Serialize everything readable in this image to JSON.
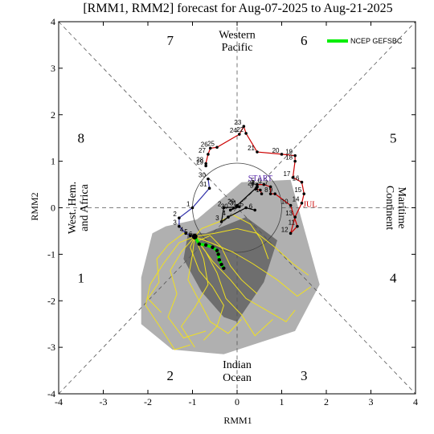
{
  "chart_data": {
    "type": "scatter",
    "title": "[RMM1, RMM2] forecast for Aug-07-2025 to Aug-21-2025",
    "xlabel": "RMM1",
    "ylabel": "RMM2",
    "xlim": [
      -4,
      4
    ],
    "ylim": [
      -4,
      4
    ],
    "xticks": [
      "-4",
      "-3",
      "-2",
      "-1",
      "0",
      "1",
      "2",
      "3",
      "4"
    ],
    "yticks": [
      "-4",
      "-3",
      "-2",
      "-1",
      "0",
      "1",
      "2",
      "3",
      "4"
    ],
    "grid": false,
    "legend_position": "top-right",
    "octants": [
      {
        "label": "1",
        "x": -3.5,
        "y": -1.5
      },
      {
        "label": "2",
        "x": -1.5,
        "y": -3.6
      },
      {
        "label": "3",
        "x": 1.5,
        "y": -3.6
      },
      {
        "label": "4",
        "x": 3.5,
        "y": -1.5
      },
      {
        "label": "5",
        "x": 3.5,
        "y": 1.5
      },
      {
        "label": "6",
        "x": 1.5,
        "y": 3.6
      },
      {
        "label": "7",
        "x": -1.5,
        "y": 3.6
      },
      {
        "label": "8",
        "x": -3.5,
        "y": 1.5
      }
    ],
    "regions": [
      {
        "lines": [
          "Western",
          "Pacific"
        ]
      },
      {
        "lines": [
          "Indian",
          "Ocean"
        ]
      },
      {
        "lines": [
          "West. Hem.",
          "and Africa"
        ]
      },
      {
        "lines": [
          "Maritime",
          "Continent"
        ]
      }
    ],
    "series": [
      {
        "name": "JUL",
        "color": "#cc0000",
        "points": [
          {
            "d": "1",
            "x": 0.55,
            "y": 0.3
          },
          {
            "d": "2",
            "x": 0.52,
            "y": 0.38
          },
          {
            "d": "3",
            "x": 0.42,
            "y": 0.4
          },
          {
            "d": "4",
            "x": 0.45,
            "y": 0.45
          },
          {
            "d": "5",
            "x": 0.45,
            "y": 0.5
          },
          {
            "d": "6",
            "x": 0.6,
            "y": 0.5
          },
          {
            "d": "7",
            "x": 0.75,
            "y": 0.45
          },
          {
            "d": "8",
            "x": 0.75,
            "y": 0.3
          },
          {
            "d": "9",
            "x": 0.85,
            "y": 0.3
          },
          {
            "d": "10",
            "x": 1.2,
            "y": 0.05
          },
          {
            "d": "11",
            "x": 1.35,
            "y": -0.4
          },
          {
            "d": "12",
            "x": 1.2,
            "y": -0.55
          },
          {
            "d": "13",
            "x": 1.3,
            "y": -0.2
          },
          {
            "d": "14",
            "x": 1.45,
            "y": 0.1
          },
          {
            "d": "15",
            "x": 1.5,
            "y": 0.3
          },
          {
            "d": "16",
            "x": 1.45,
            "y": 0.55
          },
          {
            "d": "17",
            "x": 1.25,
            "y": 0.65
          },
          {
            "d": "18",
            "x": 1.3,
            "y": 1.0
          },
          {
            "d": "19",
            "x": 1.3,
            "y": 1.12
          },
          {
            "d": "20",
            "x": 1.0,
            "y": 1.15
          },
          {
            "d": "21",
            "x": 0.45,
            "y": 1.2
          },
          {
            "d": "22",
            "x": 0.2,
            "y": 1.6
          },
          {
            "d": "23",
            "x": 0.15,
            "y": 1.75
          },
          {
            "d": "24",
            "x": 0.05,
            "y": 1.58
          },
          {
            "d": "25",
            "x": -0.45,
            "y": 1.3
          },
          {
            "d": "26",
            "x": -0.6,
            "y": 1.28
          },
          {
            "d": "27",
            "x": -0.65,
            "y": 1.15
          },
          {
            "d": "28",
            "x": -0.7,
            "y": 0.95
          },
          {
            "d": "29",
            "x": -0.7,
            "y": 0.9
          }
        ],
        "month_label": "JUL",
        "month_label_xy": [
          1.48,
          0.02
        ]
      },
      {
        "name": "AUG",
        "color": "#3333aa",
        "points": [
          {
            "d": "30",
            "x": -0.65,
            "y": 0.62
          },
          {
            "d": "31",
            "x": -0.62,
            "y": 0.42
          },
          {
            "d": "1",
            "x": -1.0,
            "y": 0.0
          },
          {
            "d": "2",
            "x": -1.3,
            "y": -0.22
          },
          {
            "d": "3",
            "x": -1.3,
            "y": -0.4
          },
          {
            "d": "4",
            "x": -1.15,
            "y": -0.55
          },
          {
            "d": "5",
            "x": -1.05,
            "y": -0.6
          },
          {
            "d": "6",
            "x": -0.95,
            "y": -0.65
          }
        ],
        "month_label": "",
        "month_label_xy": [
          0,
          0
        ]
      },
      {
        "name": "AUG-recent",
        "color": "#000000",
        "points": [
          {
            "d": "28",
            "x": 0.45,
            "y": 0.45
          },
          {
            "d": "29",
            "x": 0.0,
            "y": 0.05
          },
          {
            "d": "30",
            "x": -0.15,
            "y": -0.05
          },
          {
            "d": "31",
            "x": 0.05,
            "y": 0.02
          },
          {
            "d": "2",
            "x": -0.3,
            "y": 0.0
          },
          {
            "d": "3",
            "x": -0.35,
            "y": -0.3
          },
          {
            "d": "4",
            "x": -0.2,
            "y": -0.2
          },
          {
            "d": "5",
            "x": 0.2,
            "y": 0.0
          },
          {
            "d": "6",
            "x": 0.4,
            "y": -0.05
          }
        ],
        "month_label": "",
        "month_label_xy": [
          0,
          0
        ]
      }
    ],
    "start_label": "START",
    "start_xy": [
      0.52,
      0.58
    ],
    "forecast": {
      "name": "NCEP GEFSBC",
      "color": "#00ee00",
      "points": [
        {
          "x": -0.95,
          "y": -0.62
        },
        {
          "x": -0.85,
          "y": -0.78
        },
        {
          "x": -0.7,
          "y": -0.8
        },
        {
          "x": -0.55,
          "y": -0.85
        },
        {
          "x": -0.45,
          "y": -0.92
        },
        {
          "x": -0.42,
          "y": -1.0
        },
        {
          "x": -0.4,
          "y": -1.12
        },
        {
          "x": -0.35,
          "y": -1.22
        },
        {
          "x": -0.3,
          "y": -1.3
        }
      ]
    },
    "ensemble_envelope_90": [
      [
        -1.9,
        -0.55
      ],
      [
        -1.6,
        -0.4
      ],
      [
        -0.9,
        -0.25
      ],
      [
        0.1,
        0.55
      ],
      [
        1.2,
        0.6
      ],
      [
        1.85,
        -1.65
      ],
      [
        1.3,
        -2.65
      ],
      [
        -0.3,
        -3.15
      ],
      [
        -1.45,
        -3.05
      ],
      [
        -2.15,
        -2.5
      ],
      [
        -2.15,
        -1.5
      ]
    ],
    "ensemble_envelope_50": [
      [
        -1.1,
        -0.55
      ],
      [
        -0.7,
        -0.55
      ],
      [
        0.2,
        -0.2
      ],
      [
        0.9,
        -0.7
      ],
      [
        0.6,
        -1.6
      ],
      [
        0.0,
        -2.45
      ],
      [
        -0.3,
        -2.35
      ],
      [
        -0.8,
        -1.8
      ],
      [
        -1.2,
        -1.1
      ]
    ],
    "ensemble_members": [
      [
        [
          -0.95,
          -0.62
        ],
        [
          -1.3,
          -0.75
        ],
        [
          -1.65,
          -1.2
        ],
        [
          -1.95,
          -1.65
        ],
        [
          -2.05,
          -2.1
        ],
        [
          -1.7,
          -2.6
        ],
        [
          -1.4,
          -3.05
        ],
        [
          -1.05,
          -2.95
        ]
      ],
      [
        [
          -0.95,
          -0.62
        ],
        [
          -1.25,
          -0.95
        ],
        [
          -1.5,
          -1.35
        ],
        [
          -1.35,
          -1.85
        ],
        [
          -1.55,
          -2.35
        ],
        [
          -1.2,
          -2.8
        ],
        [
          -0.7,
          -2.65
        ]
      ],
      [
        [
          -0.95,
          -0.62
        ],
        [
          -1.0,
          -1.0
        ],
        [
          -1.1,
          -1.55
        ],
        [
          -0.85,
          -2.0
        ],
        [
          -0.6,
          -2.45
        ],
        [
          -0.2,
          -2.7
        ],
        [
          0.1,
          -2.4
        ]
      ],
      [
        [
          -0.95,
          -0.62
        ],
        [
          -0.7,
          -0.95
        ],
        [
          -0.45,
          -1.4
        ],
        [
          -0.25,
          -1.95
        ],
        [
          0.1,
          -2.3
        ],
        [
          0.4,
          -2.75
        ],
        [
          0.8,
          -2.4
        ]
      ],
      [
        [
          -0.95,
          -0.62
        ],
        [
          -0.6,
          -0.75
        ],
        [
          -0.1,
          -0.95
        ],
        [
          0.35,
          -1.2
        ],
        [
          0.9,
          -1.55
        ],
        [
          1.35,
          -1.9
        ],
        [
          1.65,
          -1.7
        ]
      ],
      [
        [
          -0.95,
          -0.62
        ],
        [
          -0.5,
          -0.55
        ],
        [
          0.0,
          -0.45
        ],
        [
          0.45,
          -0.55
        ],
        [
          0.85,
          -0.85
        ],
        [
          1.25,
          -1.2
        ],
        [
          1.6,
          -1.45
        ]
      ],
      [
        [
          -0.95,
          -0.62
        ],
        [
          -0.8,
          -0.45
        ],
        [
          -0.4,
          -0.3
        ],
        [
          -0.1,
          -0.15
        ],
        [
          0.3,
          -0.35
        ],
        [
          0.55,
          -0.7
        ],
        [
          0.7,
          -1.1
        ]
      ],
      [
        [
          -0.95,
          -0.62
        ],
        [
          -1.2,
          -0.55
        ],
        [
          -1.55,
          -0.8
        ],
        [
          -1.8,
          -1.1
        ],
        [
          -1.75,
          -1.6
        ],
        [
          -2.0,
          -1.95
        ],
        [
          -1.7,
          -2.25
        ]
      ],
      [
        [
          -0.95,
          -0.62
        ],
        [
          -0.75,
          -1.1
        ],
        [
          -0.65,
          -1.65
        ],
        [
          -0.95,
          -2.15
        ],
        [
          -1.25,
          -2.55
        ],
        [
          -0.95,
          -3.0
        ]
      ],
      [
        [
          -0.95,
          -0.62
        ],
        [
          -0.55,
          -1.15
        ],
        [
          -0.15,
          -1.55
        ],
        [
          0.2,
          -1.95
        ],
        [
          0.65,
          -2.2
        ],
        [
          1.1,
          -2.45
        ],
        [
          1.3,
          -2.2
        ]
      ],
      [
        [
          -0.95,
          -0.62
        ],
        [
          -1.05,
          -0.85
        ],
        [
          -0.85,
          -1.35
        ],
        [
          -0.55,
          -1.7
        ],
        [
          -0.3,
          -2.1
        ],
        [
          -0.45,
          -2.55
        ],
        [
          -0.75,
          -2.85
        ]
      ],
      [
        [
          -0.95,
          -0.62
        ],
        [
          -0.85,
          -0.7
        ],
        [
          -0.6,
          -0.6
        ],
        [
          -0.35,
          -0.85
        ],
        [
          -0.15,
          -1.25
        ],
        [
          0.1,
          -1.55
        ],
        [
          0.45,
          -1.85
        ]
      ]
    ]
  },
  "legend": {
    "label": "NCEP GEFSBC",
    "color": "#00ee00"
  }
}
